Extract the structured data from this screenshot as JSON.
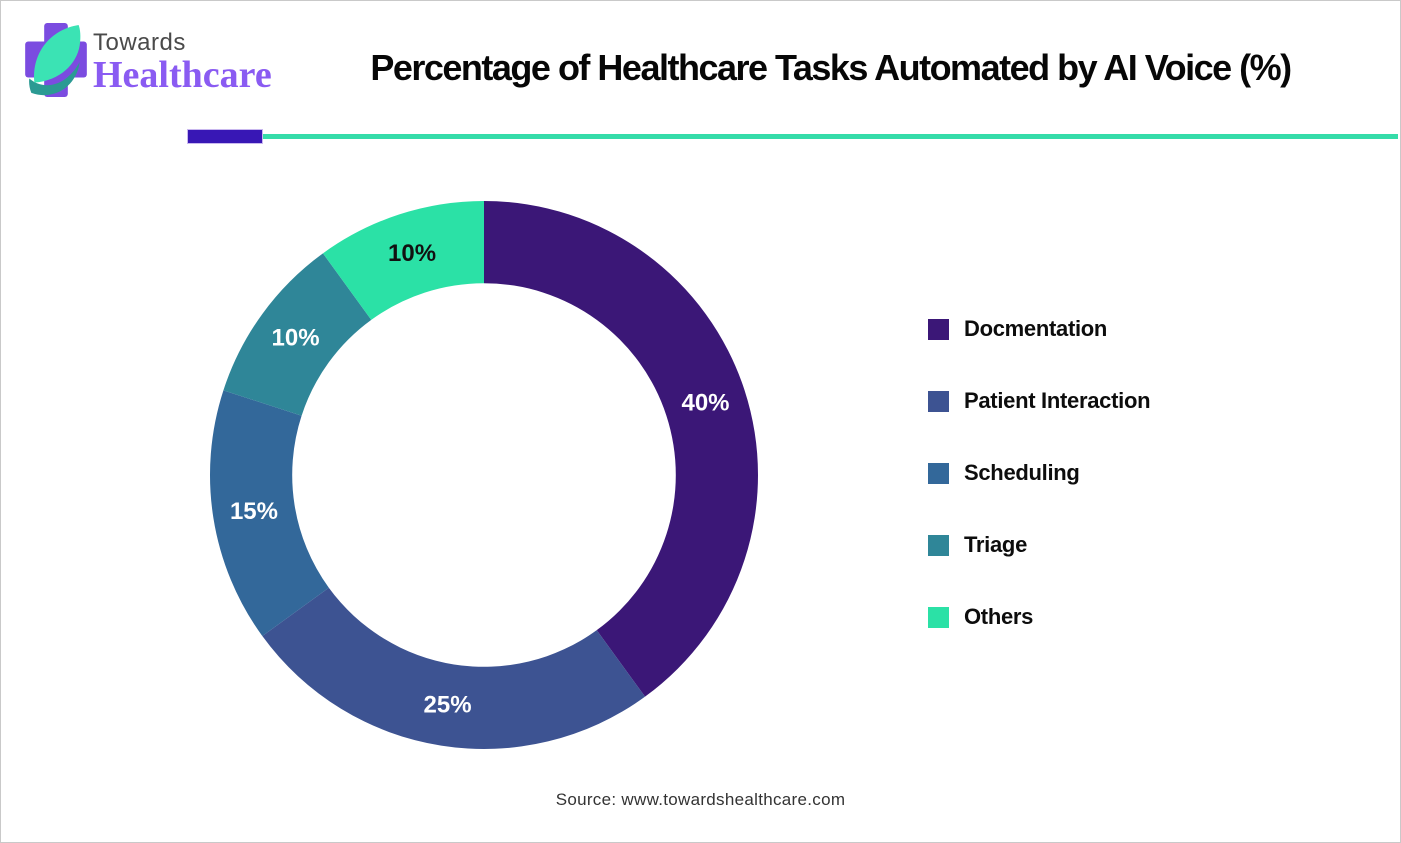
{
  "brand": {
    "name_top": "Towards",
    "name_bottom": "Healthcare",
    "logo_colors": {
      "cross": "#7b4ce0",
      "leaf": "#3be3b4",
      "leaf_dark": "#2b9a93"
    }
  },
  "header": {
    "title": "Percentage of Healthcare Tasks Automated by AI Voice (%)"
  },
  "divider": {
    "block_color": "#3817b5",
    "line_color": "#35dca9"
  },
  "chart_data": {
    "type": "pie",
    "subtype": "donut",
    "title": "Percentage of Healthcare Tasks Automated by AI Voice (%)",
    "categories": [
      "Docmentation",
      "Patient Interaction",
      "Scheduling",
      "Triage",
      "Others"
    ],
    "values": [
      40,
      25,
      15,
      10,
      10
    ],
    "labels": [
      "40%",
      "25%",
      "15%",
      "10%",
      "10%"
    ],
    "colors": [
      "#3b1777",
      "#3d5392",
      "#33689a",
      "#2f8698",
      "#2be1a6"
    ],
    "label_colors": [
      "#ffffff",
      "#ffffff",
      "#ffffff",
      "#ffffff",
      "#111111"
    ],
    "start_angle_deg": 0,
    "direction": "clockwise",
    "inner_radius_ratio": 0.7,
    "hole_color": "#ffffff",
    "legend_position": "right"
  },
  "footer": {
    "source": "Source: www.towardshealthcare.com"
  }
}
